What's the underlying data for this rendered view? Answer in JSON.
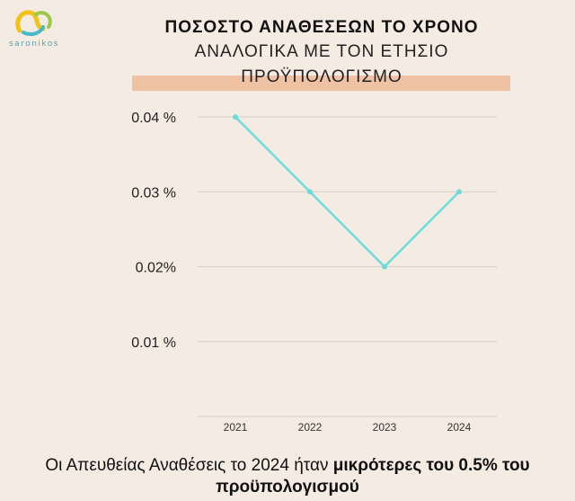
{
  "logo": {
    "text": "saronikos",
    "colors": [
      "#f2c21b",
      "#46b9c9",
      "#9bc948"
    ]
  },
  "title": {
    "line1": "ΠΟΣΟΣΤΟ ΑΝΑΘΕΣΕΩΝ ΤΟ ΧΡΟΝΟ",
    "line2": "ΑΝΑΛΟΓΙΚΑ ΜΕ ΤΟΝ ΕΤΗΣΙΟ",
    "line3": "ΠΡΟΫΠΟΛΟΓΙΣΜΟ",
    "band_color": "#efc2a4"
  },
  "footer": {
    "normal": "Οι Απευθείας Αναθέσεις το 2024 ήταν ",
    "bold_part1": "μικρότερες του 0.5% του",
    "bold_part2": "προϋπολογισμού"
  },
  "chart_data": {
    "type": "line",
    "categories": [
      "2021",
      "2022",
      "2023",
      "2024"
    ],
    "series": [
      {
        "values": [
          0.04,
          0.03,
          0.02,
          0.03
        ],
        "color": "#6fdcdc"
      }
    ],
    "y_ticks": [
      {
        "value": 0.01,
        "label": "0.01 %"
      },
      {
        "value": 0.02,
        "label": "0.02%"
      },
      {
        "value": 0.03,
        "label": "0.03 %"
      },
      {
        "value": 0.04,
        "label": "0.04 %"
      }
    ],
    "ylim": [
      0,
      0.04
    ],
    "grid": true,
    "grid_color": "#d6cfc7",
    "xlabel": "",
    "ylabel": ""
  }
}
